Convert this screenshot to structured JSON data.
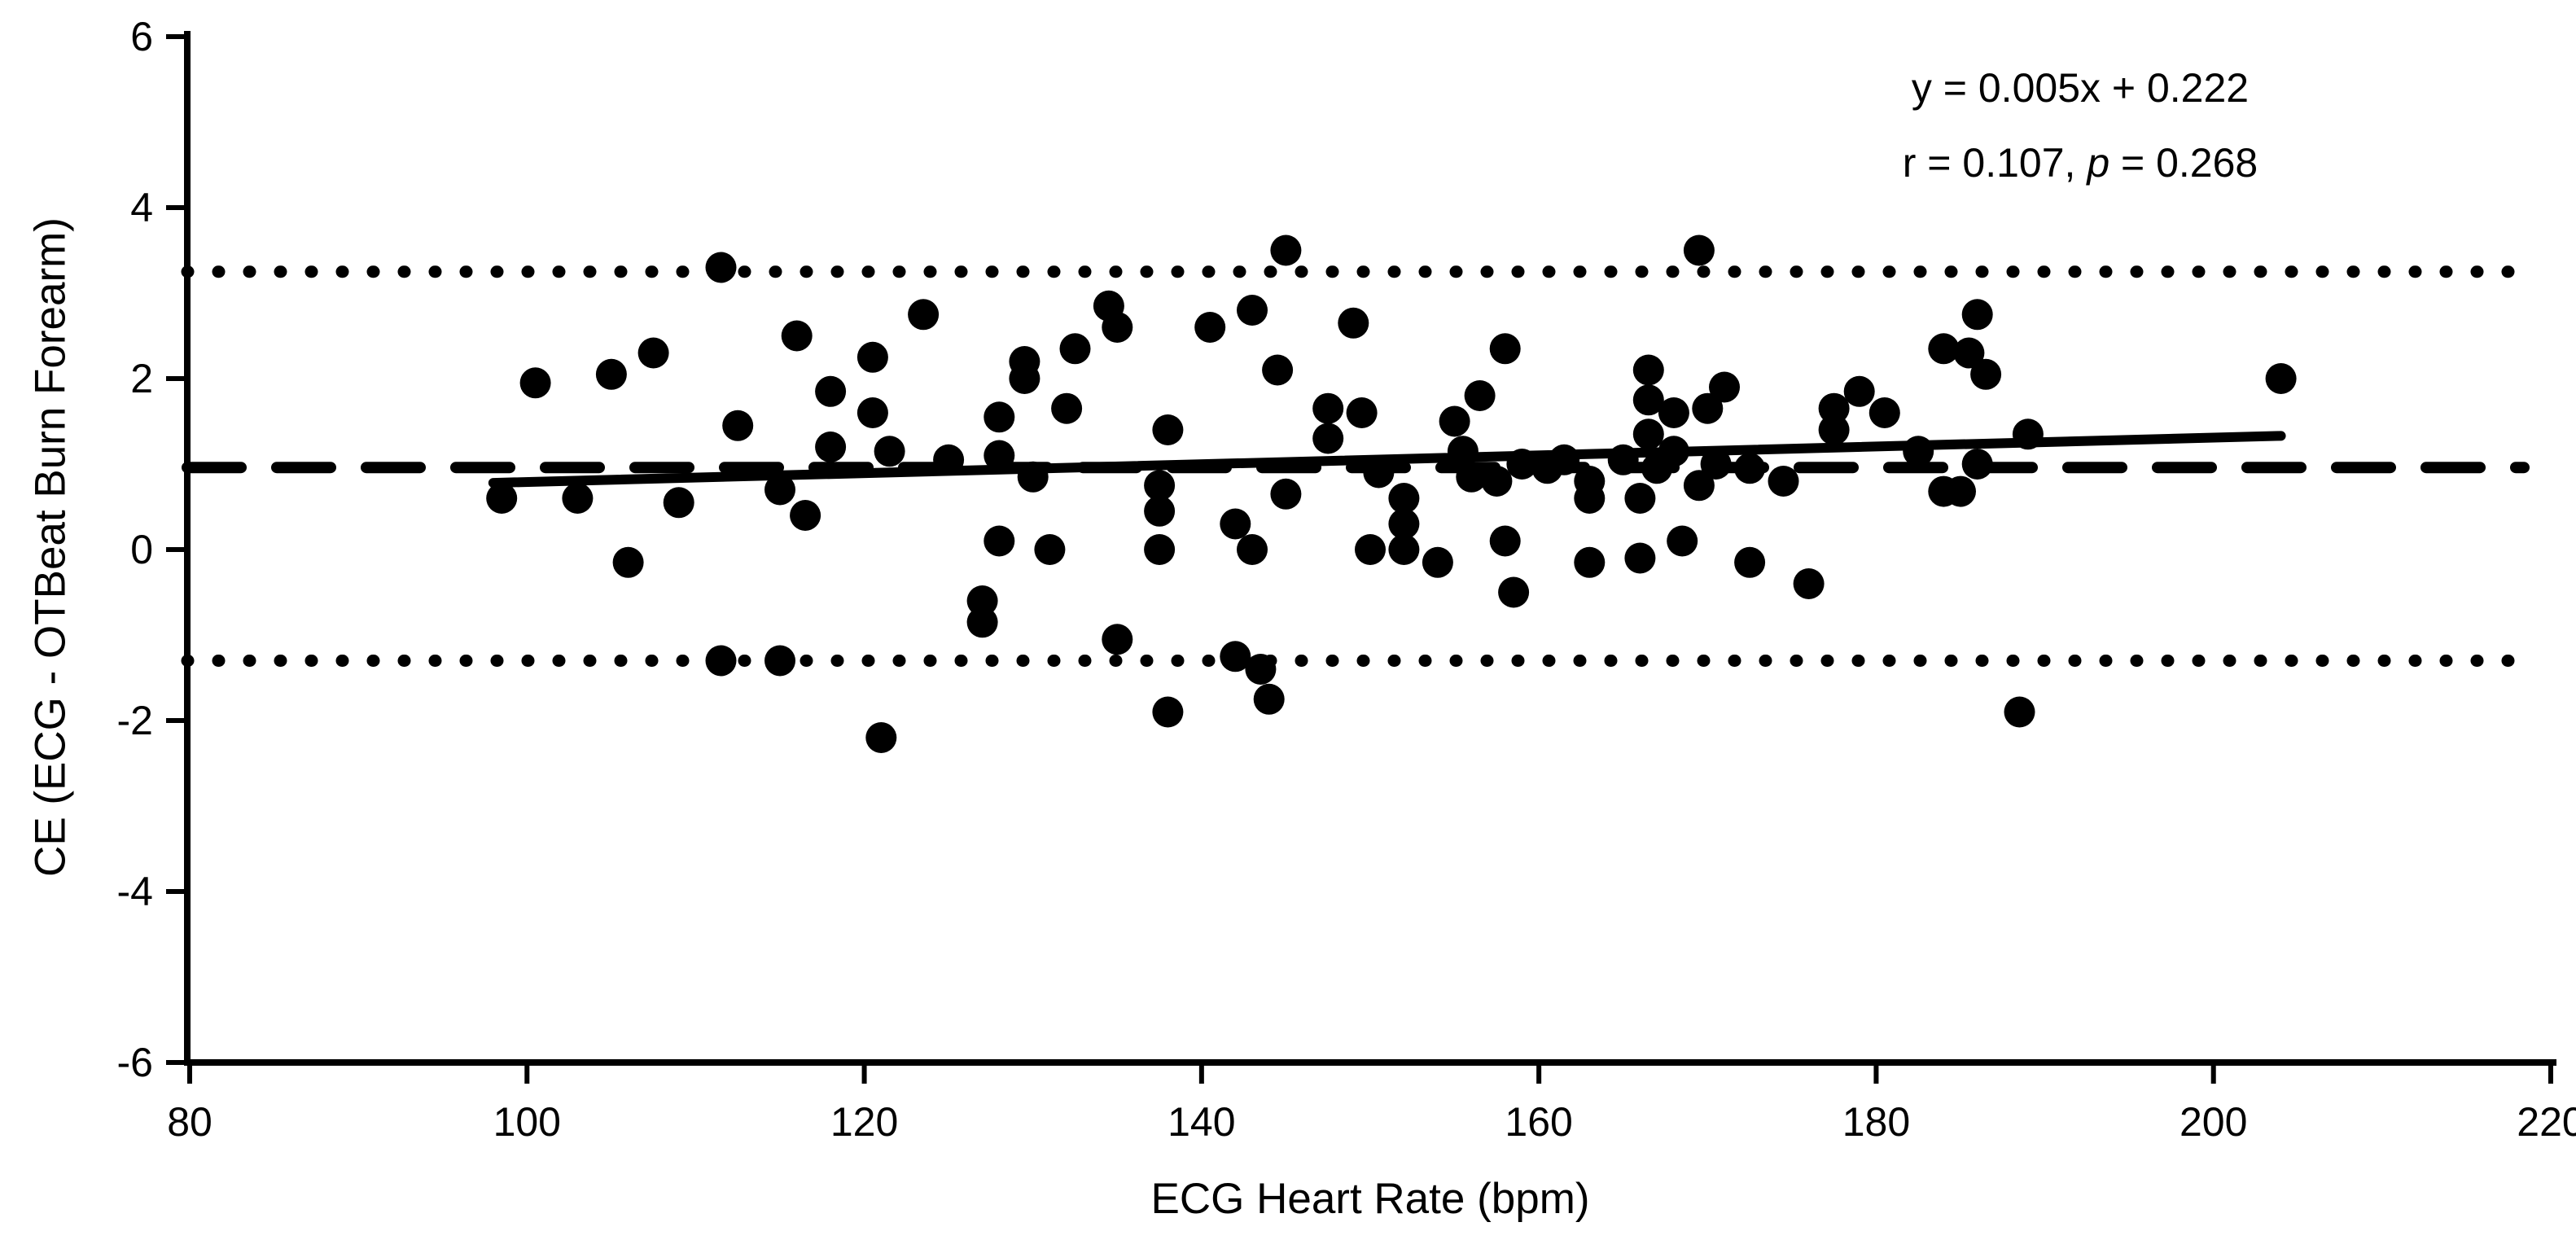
{
  "figure": {
    "background_color": "#ffffff",
    "foreground_color": "#000000",
    "annotation": {
      "line1": "y = 0.005x + 0.222",
      "line2_pre": "r = 0.107, ",
      "line2_italic": "p",
      "line2_post": " = 0.268"
    }
  },
  "chart_data": {
    "type": "scatter",
    "title": "",
    "xlabel": "ECG Heart Rate (bpm)",
    "ylabel": "CE (ECG - OTBeat Burn Forearm)",
    "xlim": [
      80,
      220
    ],
    "ylim": [
      -6,
      6
    ],
    "x_ticks": [
      80,
      100,
      120,
      140,
      160,
      180,
      200,
      220
    ],
    "y_ticks": [
      6,
      4,
      2,
      0,
      -2,
      -4,
      -6
    ],
    "grid": false,
    "legend": false,
    "marker_color": "#000000",
    "stats": {
      "r": 0.107,
      "p": 0.268,
      "slope": 0.005,
      "intercept": 0.222
    },
    "reference_lines": {
      "upper_loa": {
        "value": 3.25,
        "style": "dotted"
      },
      "mean_bias": {
        "value": 0.96,
        "style": "dashed"
      },
      "lower_loa": {
        "value": -1.3,
        "style": "dotted"
      }
    },
    "trend_line": {
      "x_start": 98,
      "y_start": 0.78,
      "x_end": 204,
      "y_end": 1.33
    },
    "points": [
      [
        111.5,
        3.3
      ],
      [
        145,
        3.5
      ],
      [
        169.5,
        3.5
      ],
      [
        123.5,
        2.75
      ],
      [
        116,
        2.5
      ],
      [
        120.5,
        2.25
      ],
      [
        107.5,
        2.3
      ],
      [
        105,
        2.05
      ],
      [
        100.5,
        1.95
      ],
      [
        129.5,
        2.2
      ],
      [
        129.5,
        2.0
      ],
      [
        132.5,
        2.35
      ],
      [
        134.5,
        2.85
      ],
      [
        135,
        2.6
      ],
      [
        140.5,
        2.6
      ],
      [
        143,
        2.8
      ],
      [
        149,
        2.65
      ],
      [
        144.5,
        2.1
      ],
      [
        158,
        2.35
      ],
      [
        166.5,
        2.1
      ],
      [
        184,
        2.35
      ],
      [
        185.5,
        2.3
      ],
      [
        186.5,
        2.05
      ],
      [
        186,
        2.75
      ],
      [
        204,
        2.0
      ],
      [
        112.5,
        1.45
      ],
      [
        118,
        1.85
      ],
      [
        120.5,
        1.6
      ],
      [
        128,
        1.55
      ],
      [
        132,
        1.65
      ],
      [
        138,
        1.4
      ],
      [
        147.5,
        1.65
      ],
      [
        147.5,
        1.3
      ],
      [
        149.5,
        1.6
      ],
      [
        156.5,
        1.8
      ],
      [
        155,
        1.5
      ],
      [
        166.5,
        1.75
      ],
      [
        168,
        1.6
      ],
      [
        170,
        1.65
      ],
      [
        171,
        1.9
      ],
      [
        166.5,
        1.35
      ],
      [
        177.5,
        1.65
      ],
      [
        179,
        1.85
      ],
      [
        180.5,
        1.6
      ],
      [
        177.5,
        1.4
      ],
      [
        182.5,
        1.15
      ],
      [
        189,
        1.35
      ],
      [
        118,
        1.2
      ],
      [
        121.5,
        1.15
      ],
      [
        125,
        1.05
      ],
      [
        128,
        1.1
      ],
      [
        130,
        0.85
      ],
      [
        137.5,
        0.75
      ],
      [
        155.5,
        1.15
      ],
      [
        150.5,
        0.9
      ],
      [
        156,
        0.85
      ],
      [
        157.5,
        0.8
      ],
      [
        159,
        1.0
      ],
      [
        160.5,
        0.95
      ],
      [
        161.5,
        1.05
      ],
      [
        163,
        0.8
      ],
      [
        165,
        1.05
      ],
      [
        167,
        0.95
      ],
      [
        168,
        1.15
      ],
      [
        169.5,
        0.75
      ],
      [
        170.5,
        1.0
      ],
      [
        172.5,
        0.95
      ],
      [
        174.5,
        0.8
      ],
      [
        186,
        1.0
      ],
      [
        98.5,
        0.6
      ],
      [
        103,
        0.6
      ],
      [
        109,
        0.55
      ],
      [
        115,
        0.7
      ],
      [
        116.5,
        0.4
      ],
      [
        137.5,
        0.45
      ],
      [
        142,
        0.3
      ],
      [
        152,
        0.3
      ],
      [
        145,
        0.65
      ],
      [
        152,
        0.6
      ],
      [
        163,
        0.6
      ],
      [
        166,
        0.6
      ],
      [
        184,
        0.68
      ],
      [
        185,
        0.68
      ],
      [
        106,
        -0.15
      ],
      [
        128,
        0.1
      ],
      [
        131,
        0.0
      ],
      [
        137.5,
        0.0
      ],
      [
        143,
        0.0
      ],
      [
        150,
        0.0
      ],
      [
        152,
        0.0
      ],
      [
        154,
        -0.15
      ],
      [
        158,
        0.1
      ],
      [
        158.5,
        -0.5
      ],
      [
        163,
        -0.15
      ],
      [
        166,
        -0.1
      ],
      [
        168.5,
        0.1
      ],
      [
        172.5,
        -0.15
      ],
      [
        176,
        -0.4
      ],
      [
        127,
        -0.6
      ],
      [
        127,
        -0.85
      ],
      [
        135,
        -1.05
      ],
      [
        111.5,
        -1.3
      ],
      [
        115,
        -1.3
      ],
      [
        142,
        -1.25
      ],
      [
        143.5,
        -1.4
      ],
      [
        138,
        -1.9
      ],
      [
        144,
        -1.75
      ],
      [
        121,
        -2.2
      ],
      [
        188.5,
        -1.9
      ]
    ]
  }
}
